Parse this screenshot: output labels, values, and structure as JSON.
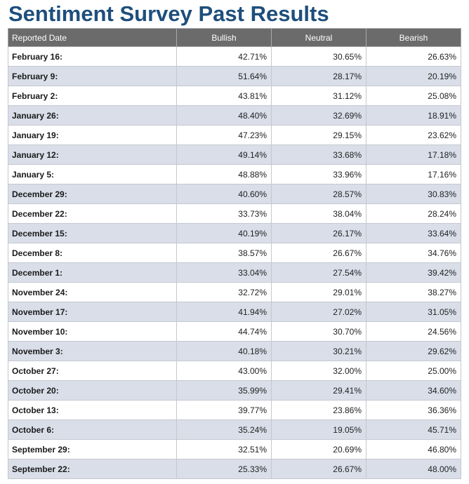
{
  "title": "Sentiment Survey Past Results",
  "table": {
    "headers": {
      "date": "Reported Date",
      "bullish": "Bullish",
      "neutral": "Neutral",
      "bearish": "Bearish"
    },
    "rows": [
      {
        "date": "February 16:",
        "bullish": "42.71%",
        "neutral": "30.65%",
        "bearish": "26.63%"
      },
      {
        "date": "February 9:",
        "bullish": "51.64%",
        "neutral": "28.17%",
        "bearish": "20.19%"
      },
      {
        "date": "February 2:",
        "bullish": "43.81%",
        "neutral": "31.12%",
        "bearish": "25.08%"
      },
      {
        "date": "January 26:",
        "bullish": "48.40%",
        "neutral": "32.69%",
        "bearish": "18.91%"
      },
      {
        "date": "January 19:",
        "bullish": "47.23%",
        "neutral": "29.15%",
        "bearish": "23.62%"
      },
      {
        "date": "January 12:",
        "bullish": "49.14%",
        "neutral": "33.68%",
        "bearish": "17.18%"
      },
      {
        "date": "January 5:",
        "bullish": "48.88%",
        "neutral": "33.96%",
        "bearish": "17.16%"
      },
      {
        "date": "December 29:",
        "bullish": "40.60%",
        "neutral": "28.57%",
        "bearish": "30.83%"
      },
      {
        "date": "December 22:",
        "bullish": "33.73%",
        "neutral": "38.04%",
        "bearish": "28.24%"
      },
      {
        "date": "December 15:",
        "bullish": "40.19%",
        "neutral": "26.17%",
        "bearish": "33.64%"
      },
      {
        "date": "December 8:",
        "bullish": "38.57%",
        "neutral": "26.67%",
        "bearish": "34.76%"
      },
      {
        "date": "December 1:",
        "bullish": "33.04%",
        "neutral": "27.54%",
        "bearish": "39.42%"
      },
      {
        "date": "November 24:",
        "bullish": "32.72%",
        "neutral": "29.01%",
        "bearish": "38.27%"
      },
      {
        "date": "November 17:",
        "bullish": "41.94%",
        "neutral": "27.02%",
        "bearish": "31.05%"
      },
      {
        "date": "November 10:",
        "bullish": "44.74%",
        "neutral": "30.70%",
        "bearish": "24.56%"
      },
      {
        "date": "November 3:",
        "bullish": "40.18%",
        "neutral": "30.21%",
        "bearish": "29.62%"
      },
      {
        "date": "October 27:",
        "bullish": "43.00%",
        "neutral": "32.00%",
        "bearish": "25.00%"
      },
      {
        "date": "October 20:",
        "bullish": "35.99%",
        "neutral": "29.41%",
        "bearish": "34.60%"
      },
      {
        "date": "October 13:",
        "bullish": "39.77%",
        "neutral": "23.86%",
        "bearish": "36.36%"
      },
      {
        "date": "October 6:",
        "bullish": "35.24%",
        "neutral": "19.05%",
        "bearish": "45.71%"
      },
      {
        "date": "September 29:",
        "bullish": "32.51%",
        "neutral": "20.69%",
        "bearish": "46.80%"
      },
      {
        "date": "September 22:",
        "bullish": "25.33%",
        "neutral": "26.67%",
        "bearish": "48.00%"
      }
    ]
  },
  "colors": {
    "title": "#1e4e7c",
    "header_bg": "#6b6b6b",
    "row_stripe": "#d9dee9"
  }
}
